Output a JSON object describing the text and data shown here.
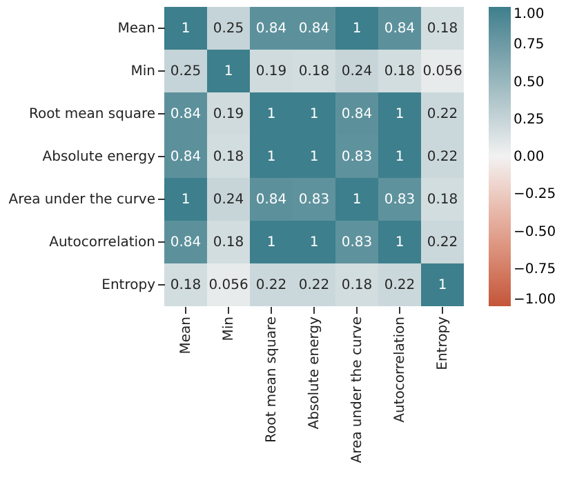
{
  "chart_data": {
    "type": "heatmap",
    "categories": [
      "Mean",
      "Min",
      "Root mean square",
      "Absolute energy",
      "Area under the curve",
      "Autocorrelation",
      "Entropy"
    ],
    "y_categories": [
      "Mean",
      "Min",
      "Root mean square",
      "Absolute energy",
      "Area under the curve",
      "Autocorrelation",
      "Entropy"
    ],
    "cells": [
      [
        1,
        0.25,
        0.84,
        0.84,
        1,
        0.84,
        0.18
      ],
      [
        0.25,
        1,
        0.19,
        0.18,
        0.24,
        0.18,
        0.056
      ],
      [
        0.84,
        0.19,
        1,
        1,
        0.84,
        1,
        0.22
      ],
      [
        0.84,
        0.18,
        1,
        1,
        0.83,
        1,
        0.22
      ],
      [
        1,
        0.24,
        0.84,
        0.83,
        1,
        0.83,
        0.18
      ],
      [
        0.84,
        0.18,
        1,
        1,
        0.83,
        1,
        0.22
      ],
      [
        0.18,
        0.056,
        0.22,
        0.22,
        0.18,
        0.22,
        1
      ]
    ],
    "colors": [
      "#c3553a",
      "#f2f2f2",
      "#3d7f8c"
    ],
    "clim": [
      -1,
      1
    ],
    "cticks": [
      {
        "value": -1,
        "label": "−1.00"
      },
      {
        "value": -0.75,
        "label": "−0.75"
      },
      {
        "value": -0.5,
        "label": "−0.50"
      },
      {
        "value": -0.25,
        "label": "−0.25"
      },
      {
        "value": 0,
        "label": "0.00"
      },
      {
        "value": 0.25,
        "label": "0.25"
      },
      {
        "value": 0.5,
        "label": "0.50"
      },
      {
        "value": 0.75,
        "label": "0.75"
      },
      {
        "value": 1,
        "label": "1.00"
      }
    ],
    "data_labels": true
  }
}
